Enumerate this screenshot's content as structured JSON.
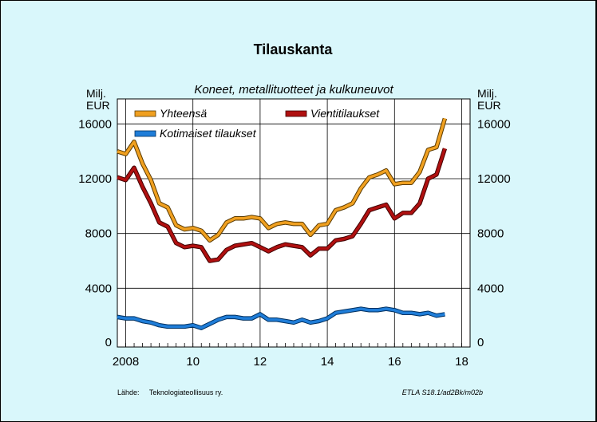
{
  "chart_data": {
    "type": "line",
    "title": "Tilauskanta",
    "subtitle": "Koneet, metallituotteet ja kulkuneuvot",
    "ylabel_left": [
      "Milj.",
      "EUR"
    ],
    "ylabel_right": [
      "Milj.",
      "EUR"
    ],
    "ylim": [
      0,
      18000
    ],
    "yticks": [
      0,
      4000,
      8000,
      12000,
      16000
    ],
    "xlim": [
      2007.75,
      2018.25
    ],
    "xticks": [
      {
        "value": 2008,
        "label": "2008"
      },
      {
        "value": 2010,
        "label": "10"
      },
      {
        "value": 2012,
        "label": "12"
      },
      {
        "value": 2014,
        "label": "14"
      },
      {
        "value": 2016,
        "label": "16"
      },
      {
        "value": 2018,
        "label": "18"
      }
    ],
    "grid": true,
    "legend_position": "top",
    "x": [
      2007.75,
      2008.0,
      2008.25,
      2008.5,
      2008.75,
      2009.0,
      2009.25,
      2009.5,
      2009.75,
      2010.0,
      2010.25,
      2010.5,
      2010.75,
      2011.0,
      2011.25,
      2011.5,
      2011.75,
      2012.0,
      2012.25,
      2012.5,
      2012.75,
      2013.0,
      2013.25,
      2013.5,
      2013.75,
      2014.0,
      2014.25,
      2014.5,
      2014.75,
      2015.0,
      2015.25,
      2015.5,
      2015.75,
      2016.0,
      2016.25,
      2016.5,
      2016.75,
      2017.0,
      2017.25,
      2017.5
    ],
    "series": [
      {
        "name": "Yhteensä",
        "color": "#f0a020",
        "values": [
          14000,
          13800,
          14700,
          13100,
          11900,
          10200,
          9900,
          8600,
          8300,
          8400,
          8200,
          7500,
          7900,
          8800,
          9100,
          9100,
          9200,
          9100,
          8400,
          8700,
          8800,
          8700,
          8700,
          7900,
          8600,
          8700,
          9700,
          9900,
          10200,
          11300,
          12100,
          12300,
          12600,
          11600,
          11700,
          11700,
          12500,
          14100,
          14300,
          16400
        ]
      },
      {
        "name": "Vientitilaukset",
        "color": "#b01010",
        "values": [
          12100,
          11900,
          12800,
          11400,
          10200,
          8800,
          8500,
          7300,
          7000,
          7100,
          7000,
          6000,
          6100,
          6800,
          7100,
          7200,
          7300,
          7000,
          6700,
          7000,
          7200,
          7100,
          7000,
          6400,
          6900,
          6900,
          7500,
          7600,
          7800,
          8700,
          9700,
          9900,
          10100,
          9100,
          9500,
          9500,
          10200,
          12000,
          12300,
          14200
        ]
      },
      {
        "name": "Kotimaiset tilaukset",
        "color": "#1f7dd8",
        "values": [
          1900,
          1800,
          1800,
          1600,
          1500,
          1300,
          1200,
          1200,
          1200,
          1300,
          1100,
          1400,
          1700,
          1900,
          1900,
          1800,
          1800,
          2100,
          1700,
          1700,
          1600,
          1500,
          1700,
          1500,
          1600,
          1800,
          2200,
          2300,
          2400,
          2500,
          2400,
          2400,
          2500,
          2400,
          2200,
          2200,
          2100,
          2200,
          2000,
          2100
        ]
      }
    ],
    "footer_left": "Lähde:     Teknologiateollisuus ry.",
    "footer_right": "ETLA S18.1/ad2Bk/m02b"
  }
}
